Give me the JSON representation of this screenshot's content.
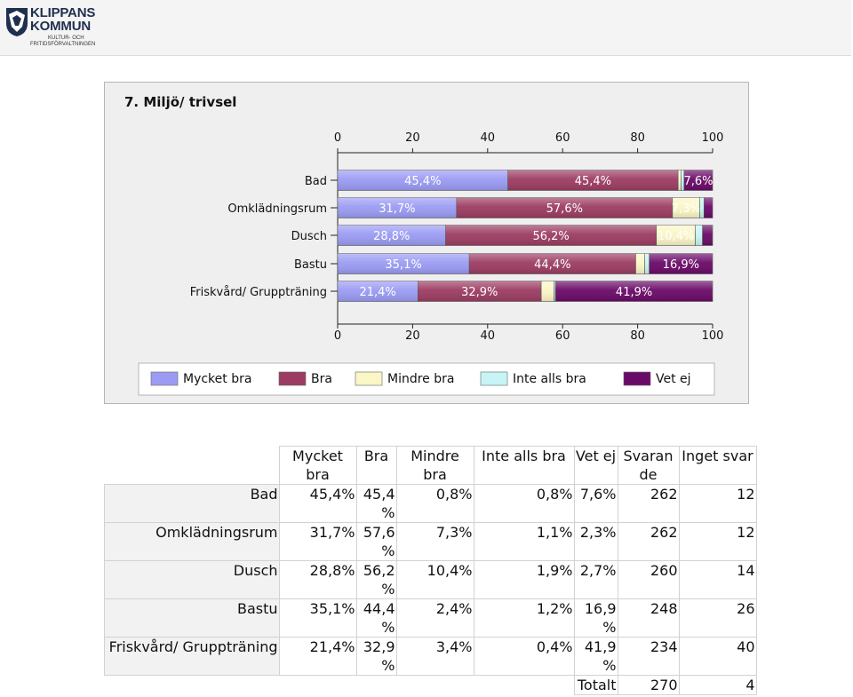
{
  "logo": {
    "name_line1": "KLIPPANS",
    "name_line2": "KOMMUN",
    "sub_line1": "KULTUR- OCH",
    "sub_line2": "FRITIDSFÖRVALTNINGEN"
  },
  "chart_data": {
    "type": "bar",
    "orientation": "horizontal",
    "stacked": true,
    "title": "7. Miljö/ trivsel",
    "categories": [
      "Bad",
      "Omklädningsrum",
      "Dusch",
      "Bastu",
      "Friskvård/ Gruppträning"
    ],
    "series": [
      {
        "name": "Mycket bra",
        "color": "#9b9bf4",
        "values": [
          45.4,
          31.7,
          28.8,
          35.1,
          21.4
        ],
        "labels": [
          "45,4%",
          "31,7%",
          "28,8%",
          "35,1%",
          "21,4%"
        ]
      },
      {
        "name": "Bra",
        "color": "#9c3c62",
        "values": [
          45.4,
          57.6,
          56.2,
          44.4,
          32.9
        ],
        "labels": [
          "45,4%",
          "57,6%",
          "56,2%",
          "44,4%",
          "32,9%"
        ]
      },
      {
        "name": "Mindre bra",
        "color": "#fbf6c6",
        "values": [
          0.8,
          7.3,
          10.4,
          2.4,
          3.4
        ],
        "labels": [
          "",
          "7,3%",
          "10,4%",
          "",
          ""
        ]
      },
      {
        "name": "Inte alls bra",
        "color": "#c7f5f5",
        "values": [
          0.8,
          1.1,
          1.9,
          1.2,
          0.4
        ],
        "labels": [
          "",
          "",
          "",
          "",
          ""
        ]
      },
      {
        "name": "Vet ej",
        "color": "#6a0a68",
        "values": [
          7.6,
          2.3,
          2.7,
          16.9,
          41.9
        ],
        "labels": [
          "7,6%",
          "",
          "",
          "16,9%",
          "41,9%"
        ]
      }
    ],
    "xlim": [
      0,
      100
    ],
    "xticks": [
      0,
      20,
      40,
      60,
      80,
      100
    ],
    "axis_top": true,
    "axis_bottom": true,
    "legend_position": "bottom",
    "grid": false
  },
  "table": {
    "headers": [
      "Mycket bra",
      "Bra",
      "Mindre bra",
      "Inte alls bra",
      "Vet ej",
      "Svaran de",
      "Inget svar"
    ],
    "rows": [
      {
        "label": "Bad",
        "cells": [
          "45,4%",
          "45,4 %",
          "0,8%",
          "0,8%",
          "7,6%",
          "262",
          "12"
        ]
      },
      {
        "label": "Omklädningsrum",
        "cells": [
          "31,7%",
          "57,6 %",
          "7,3%",
          "1,1%",
          "2,3%",
          "262",
          "12"
        ]
      },
      {
        "label": "Dusch",
        "cells": [
          "28,8%",
          "56,2 %",
          "10,4%",
          "1,9%",
          "2,7%",
          "260",
          "14"
        ]
      },
      {
        "label": "Bastu",
        "cells": [
          "35,1%",
          "44,4 %",
          "2,4%",
          "1,2%",
          "16,9 %",
          "248",
          "26"
        ]
      },
      {
        "label": "Friskvård/ Gruppträning",
        "cells": [
          "21,4%",
          "32,9 %",
          "3,4%",
          "0,4%",
          "41,9 %",
          "234",
          "40"
        ]
      }
    ],
    "total": {
      "label": "Totalt",
      "svarande": "270",
      "inget_svar": "4"
    }
  }
}
